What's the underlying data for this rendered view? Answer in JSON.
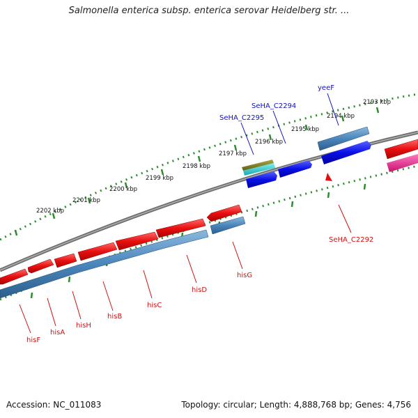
{
  "title": "Salmonella enterica subsp. enterica serovar Heidelberg str. ...",
  "footer": {
    "accession": "Accession: NC_011083",
    "summary": "Topology: circular; Length: 4,888,768 bp; Genes: 4,756"
  },
  "colors": {
    "backbone": "#7a7a7a",
    "tick": "#2e8b2e",
    "forward_gene": "#e01010",
    "reverse_gene": "#3f7fb5",
    "label_red": "#d01010",
    "label_blue": "#1010c0",
    "blue_gene": "#0a10e0",
    "olive_gene": "#808020",
    "cyan_gene": "#22c8c8",
    "pink_gene": "#e0208a"
  },
  "kbp_labels": [
    "2193 kbp",
    "2194 kbp",
    "2195 kbp",
    "2196 kbp",
    "2197 kbp",
    "2198 kbp",
    "2199 kbp",
    "2200 kbp",
    "2201 kbp",
    "2202 kbp"
  ],
  "gene_labels": [
    {
      "name": "yeeF",
      "color": "blue"
    },
    {
      "name": "SeHA_C2294",
      "color": "blue"
    },
    {
      "name": "SeHA_C2295",
      "color": "blue"
    },
    {
      "name": "SeHA_C2292",
      "color": "red"
    },
    {
      "name": "hisG",
      "color": "red"
    },
    {
      "name": "hisD",
      "color": "red"
    },
    {
      "name": "hisC",
      "color": "red"
    },
    {
      "name": "hisB",
      "color": "red"
    },
    {
      "name": "hisH",
      "color": "red"
    },
    {
      "name": "hisA",
      "color": "red"
    },
    {
      "name": "hisF",
      "color": "red"
    }
  ]
}
